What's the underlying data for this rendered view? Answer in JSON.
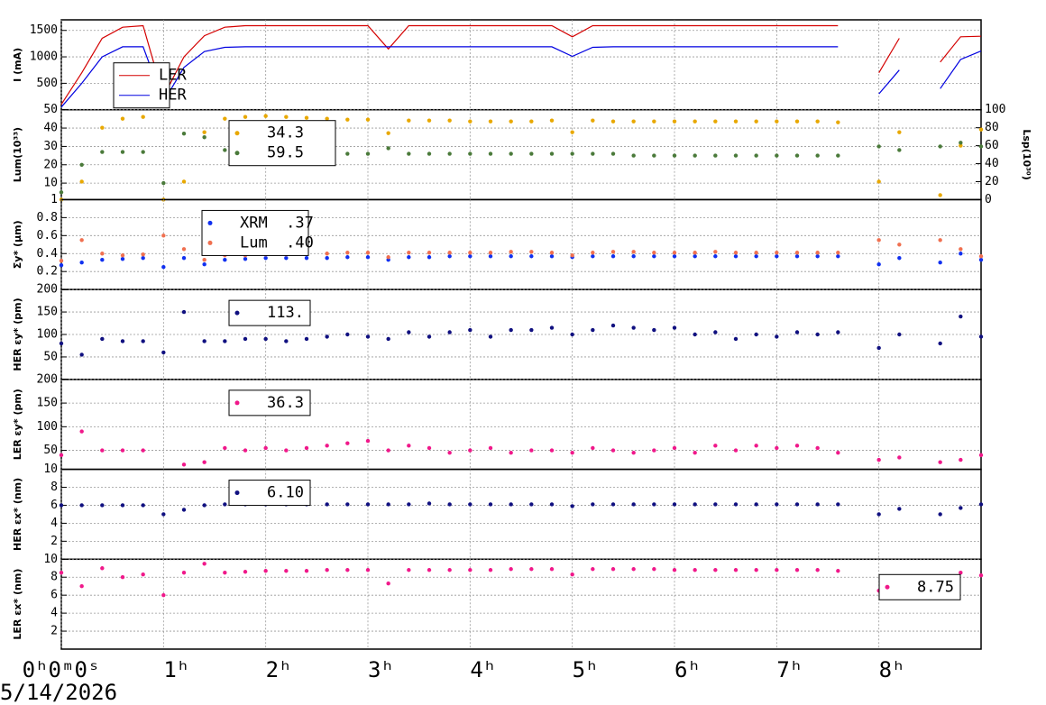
{
  "chart_data": [
    {
      "type": "line",
      "ylabel": "I (mA)",
      "xlim": [
        0,
        9
      ],
      "ylim": [
        0,
        1700
      ],
      "yticks": [
        500,
        1000,
        1500
      ],
      "grid": true,
      "legend": "lower left",
      "x": [
        0,
        0.2,
        0.4,
        0.6,
        0.8,
        1,
        1.2,
        1.4,
        1.6,
        1.8,
        2,
        2.2,
        2.4,
        2.6,
        2.8,
        3,
        3.2,
        3.4,
        3.6,
        3.8,
        4,
        4.2,
        4.4,
        4.6,
        4.8,
        5,
        5.2,
        5.4,
        5.6,
        5.8,
        6,
        6.2,
        6.4,
        6.6,
        6.8,
        7,
        7.2,
        7.4,
        7.6,
        7.8,
        8,
        8.2,
        8.4,
        8.6,
        8.8,
        9
      ],
      "series": [
        {
          "name": "LER",
          "color": "#d40000",
          "values": [
            100,
            700,
            1350,
            1560,
            1590,
            250,
            1000,
            1400,
            1560,
            1590,
            1590,
            1590,
            1590,
            1590,
            1590,
            1590,
            1150,
            1590,
            1590,
            1590,
            1590,
            1590,
            1590,
            1590,
            1590,
            1380,
            1590,
            1590,
            1590,
            1590,
            1590,
            1590,
            1590,
            1590,
            1590,
            1590,
            1590,
            1590,
            1590,
            null,
            700,
            1350,
            null,
            900,
            1380,
            1390
          ]
        },
        {
          "name": "HER",
          "color": "#0000e0",
          "values": [
            50,
            500,
            1000,
            1190,
            1190,
            150,
            800,
            1100,
            1180,
            1190,
            1190,
            1190,
            1190,
            1190,
            1190,
            1190,
            1190,
            1190,
            1190,
            1190,
            1190,
            1190,
            1190,
            1190,
            1190,
            1010,
            1180,
            1190,
            1190,
            1190,
            1190,
            1190,
            1190,
            1190,
            1190,
            1190,
            1190,
            1190,
            1190,
            null,
            300,
            750,
            null,
            400,
            950,
            1110
          ]
        }
      ]
    },
    {
      "type": "scatter",
      "ylabel": "Lum(10³³)",
      "y2label": "Lsp(10³⁰)",
      "xlim": [
        0,
        9
      ],
      "ylim": [
        1,
        50
      ],
      "yticks": [
        1,
        10,
        20,
        30,
        40,
        50
      ],
      "y2lim": [
        0,
        100
      ],
      "y2ticks": [
        0,
        20,
        40,
        60,
        80,
        100
      ],
      "grid": true,
      "legend": "upper left",
      "x": [
        0,
        0.2,
        0.4,
        0.6,
        0.8,
        1,
        1.2,
        1.4,
        1.6,
        1.8,
        2,
        2.2,
        2.4,
        2.6,
        2.8,
        3,
        3.2,
        3.4,
        3.6,
        3.8,
        4,
        4.2,
        4.4,
        4.6,
        4.8,
        5,
        5.2,
        5.4,
        5.6,
        5.8,
        6,
        6.2,
        6.4,
        6.6,
        6.8,
        7,
        7.2,
        7.4,
        7.6,
        7.8,
        8,
        8.2,
        8.4,
        8.6,
        8.8,
        9
      ],
      "series": [
        {
          "name": "34.3",
          "color": "#e8a800",
          "axis": "y2",
          "values": [
            0,
            20,
            80,
            90,
            92,
            0,
            20,
            75,
            90,
            92,
            93,
            92,
            91,
            90,
            89,
            89,
            74,
            88,
            88,
            88,
            87,
            87,
            87,
            87,
            88,
            75,
            88,
            87,
            87,
            87,
            87,
            87,
            87,
            87,
            87,
            87,
            87,
            87,
            86,
            null,
            20,
            75,
            null,
            5,
            60,
            78
          ]
        },
        {
          "name": "59.5",
          "color": "#4a7a3a",
          "values": [
            5,
            20,
            27,
            27,
            27,
            10,
            37,
            35,
            28,
            27,
            27,
            27,
            26,
            26,
            26,
            26,
            29,
            26,
            26,
            26,
            26,
            26,
            26,
            26,
            26,
            26,
            26,
            26,
            25,
            25,
            25,
            25,
            25,
            25,
            25,
            25,
            25,
            25,
            25,
            null,
            30,
            28,
            null,
            30,
            32,
            30
          ]
        }
      ]
    },
    {
      "type": "scatter",
      "ylabel": "Σy* (μm)",
      "xlim": [
        0,
        9
      ],
      "ylim": [
        0,
        1
      ],
      "yticks": [
        0.2,
        0.4,
        0.6,
        0.8
      ],
      "grid": true,
      "legend": "upper left",
      "x": [
        0,
        0.2,
        0.4,
        0.6,
        0.8,
        1,
        1.2,
        1.4,
        1.6,
        1.8,
        2,
        2.2,
        2.4,
        2.6,
        2.8,
        3,
        3.2,
        3.4,
        3.6,
        3.8,
        4,
        4.2,
        4.4,
        4.6,
        4.8,
        5,
        5.2,
        5.4,
        5.6,
        5.8,
        6,
        6.2,
        6.4,
        6.6,
        6.8,
        7,
        7.2,
        7.4,
        7.6,
        7.8,
        8,
        8.2,
        8.4,
        8.6,
        8.8,
        9
      ],
      "series": [
        {
          "name": "XRM  .37",
          "color": "#1030f0",
          "values": [
            0.27,
            0.3,
            0.33,
            0.34,
            0.35,
            0.25,
            0.35,
            0.28,
            0.33,
            0.34,
            0.35,
            0.35,
            0.35,
            0.35,
            0.36,
            0.36,
            0.33,
            0.36,
            0.36,
            0.37,
            0.37,
            0.37,
            0.37,
            0.37,
            0.37,
            0.36,
            0.37,
            0.37,
            0.37,
            0.37,
            0.37,
            0.37,
            0.37,
            0.37,
            0.37,
            0.37,
            0.37,
            0.37,
            0.37,
            null,
            0.28,
            0.35,
            null,
            0.3,
            0.4,
            0.33
          ]
        },
        {
          "name": "Lum  .40",
          "color": "#f07050",
          "values": [
            0.32,
            0.55,
            0.4,
            0.38,
            0.39,
            0.6,
            0.45,
            0.33,
            0.38,
            0.38,
            0.39,
            0.39,
            0.4,
            0.4,
            0.41,
            0.41,
            0.36,
            0.41,
            0.41,
            0.41,
            0.41,
            0.41,
            0.42,
            0.42,
            0.41,
            0.38,
            0.41,
            0.42,
            0.42,
            0.41,
            0.41,
            0.41,
            0.42,
            0.41,
            0.41,
            0.41,
            0.41,
            0.41,
            0.41,
            null,
            0.55,
            0.5,
            null,
            0.55,
            0.45,
            0.37
          ]
        }
      ]
    },
    {
      "type": "scatter",
      "ylabel": "HER εy* (pm)",
      "xlim": [
        0,
        9
      ],
      "ylim": [
        0,
        200
      ],
      "yticks": [
        50,
        100,
        150,
        200
      ],
      "grid": true,
      "legend": "upper left",
      "x": [
        0,
        0.2,
        0.4,
        0.6,
        0.8,
        1,
        1.2,
        1.4,
        1.6,
        1.8,
        2,
        2.2,
        2.4,
        2.6,
        2.8,
        3,
        3.2,
        3.4,
        3.6,
        3.8,
        4,
        4.2,
        4.4,
        4.6,
        4.8,
        5,
        5.2,
        5.4,
        5.6,
        5.8,
        6,
        6.2,
        6.4,
        6.6,
        6.8,
        7,
        7.2,
        7.4,
        7.6,
        7.8,
        8,
        8.2,
        8.4,
        8.6,
        8.8,
        9
      ],
      "series": [
        {
          "name": "113.",
          "color": "#101080",
          "values": [
            80,
            55,
            90,
            85,
            85,
            60,
            150,
            85,
            85,
            90,
            90,
            85,
            90,
            95,
            100,
            95,
            90,
            105,
            95,
            105,
            110,
            95,
            110,
            110,
            115,
            100,
            110,
            120,
            115,
            110,
            115,
            100,
            105,
            90,
            100,
            95,
            105,
            100,
            105,
            null,
            70,
            100,
            null,
            80,
            140,
            95
          ]
        }
      ]
    },
    {
      "type": "scatter",
      "ylabel": "LER εy* (pm)",
      "xlim": [
        0,
        9
      ],
      "ylim": [
        10,
        200
      ],
      "yticks": [
        10,
        50,
        100,
        150,
        200
      ],
      "grid": true,
      "legend": "upper left",
      "x": [
        0,
        0.2,
        0.4,
        0.6,
        0.8,
        1,
        1.2,
        1.4,
        1.6,
        1.8,
        2,
        2.2,
        2.4,
        2.6,
        2.8,
        3,
        3.2,
        3.4,
        3.6,
        3.8,
        4,
        4.2,
        4.4,
        4.6,
        4.8,
        5,
        5.2,
        5.4,
        5.6,
        5.8,
        6,
        6.2,
        6.4,
        6.6,
        6.8,
        7,
        7.2,
        7.4,
        7.6,
        7.8,
        8,
        8.2,
        8.4,
        8.6,
        8.8,
        9
      ],
      "series": [
        {
          "name": "36.3",
          "color": "#f0188a",
          "values": [
            40,
            90,
            50,
            50,
            50,
            null,
            20,
            25,
            55,
            50,
            55,
            50,
            55,
            60,
            65,
            70,
            50,
            60,
            55,
            45,
            50,
            55,
            45,
            50,
            50,
            45,
            55,
            50,
            45,
            50,
            55,
            45,
            60,
            50,
            60,
            55,
            60,
            55,
            45,
            null,
            30,
            35,
            null,
            25,
            30,
            40
          ]
        }
      ]
    },
    {
      "type": "scatter",
      "ylabel": "HER εx* (nm)",
      "xlim": [
        0,
        9
      ],
      "ylim": [
        0,
        10
      ],
      "yticks": [
        2,
        4,
        6,
        8
      ],
      "grid": true,
      "legend": "upper left",
      "x": [
        0,
        0.2,
        0.4,
        0.6,
        0.8,
        1,
        1.2,
        1.4,
        1.6,
        1.8,
        2,
        2.2,
        2.4,
        2.6,
        2.8,
        3,
        3.2,
        3.4,
        3.6,
        3.8,
        4,
        4.2,
        4.4,
        4.6,
        4.8,
        5,
        5.2,
        5.4,
        5.6,
        5.8,
        6,
        6.2,
        6.4,
        6.6,
        6.8,
        7,
        7.2,
        7.4,
        7.6,
        7.8,
        8,
        8.2,
        8.4,
        8.6,
        8.8,
        9
      ],
      "series": [
        {
          "name": "6.10",
          "color": "#101080",
          "values": [
            6,
            6,
            6,
            6,
            6,
            5,
            5.5,
            6,
            6.1,
            6.1,
            6.1,
            6.1,
            6.1,
            6.1,
            6.1,
            6.1,
            6.1,
            6.1,
            6.2,
            6.1,
            6.1,
            6.1,
            6.1,
            6.1,
            6.1,
            5.9,
            6.1,
            6.1,
            6.1,
            6.1,
            6.1,
            6.1,
            6.1,
            6.1,
            6.1,
            6.1,
            6.1,
            6.1,
            6.1,
            null,
            5,
            5.6,
            null,
            5,
            5.7,
            6.1
          ]
        }
      ]
    },
    {
      "type": "scatter",
      "ylabel": "LER εx* (nm)",
      "xlim": [
        0,
        9
      ],
      "ylim": [
        0,
        10
      ],
      "yticks": [
        2,
        4,
        6,
        8,
        10
      ],
      "grid": true,
      "legend": "upper right",
      "xticks": [
        {
          "value": 0,
          "label": "0ʰ0ᵐ0ˢ"
        },
        {
          "value": 1,
          "label": "1ʰ"
        },
        {
          "value": 2,
          "label": "2ʰ"
        },
        {
          "value": 3,
          "label": "3ʰ"
        },
        {
          "value": 4,
          "label": "4ʰ"
        },
        {
          "value": 5,
          "label": "5ʰ"
        },
        {
          "value": 6,
          "label": "6ʰ"
        },
        {
          "value": 7,
          "label": "7ʰ"
        },
        {
          "value": 8,
          "label": "8ʰ"
        }
      ],
      "date": "5/14/2026",
      "x": [
        0,
        0.2,
        0.4,
        0.6,
        0.8,
        1,
        1.2,
        1.4,
        1.6,
        1.8,
        2,
        2.2,
        2.4,
        2.6,
        2.8,
        3,
        3.2,
        3.4,
        3.6,
        3.8,
        4,
        4.2,
        4.4,
        4.6,
        4.8,
        5,
        5.2,
        5.4,
        5.6,
        5.8,
        6,
        6.2,
        6.4,
        6.6,
        6.8,
        7,
        7.2,
        7.4,
        7.6,
        7.8,
        8,
        8.2,
        8.4,
        8.6,
        8.8,
        9
      ],
      "series": [
        {
          "name": "8.75",
          "color": "#f0188a",
          "values": [
            8.5,
            7,
            9,
            8,
            8.3,
            6,
            8.5,
            9.5,
            8.5,
            8.6,
            8.7,
            8.7,
            8.7,
            8.8,
            8.8,
            8.8,
            7.3,
            8.8,
            8.8,
            8.8,
            8.8,
            8.8,
            8.9,
            8.9,
            8.9,
            8.3,
            8.9,
            8.9,
            8.9,
            8.9,
            8.8,
            8.8,
            8.8,
            8.8,
            8.8,
            8.8,
            8.8,
            8.8,
            8.7,
            null,
            6.5,
            8,
            null,
            6.5,
            8.5,
            8.2
          ]
        }
      ]
    }
  ]
}
